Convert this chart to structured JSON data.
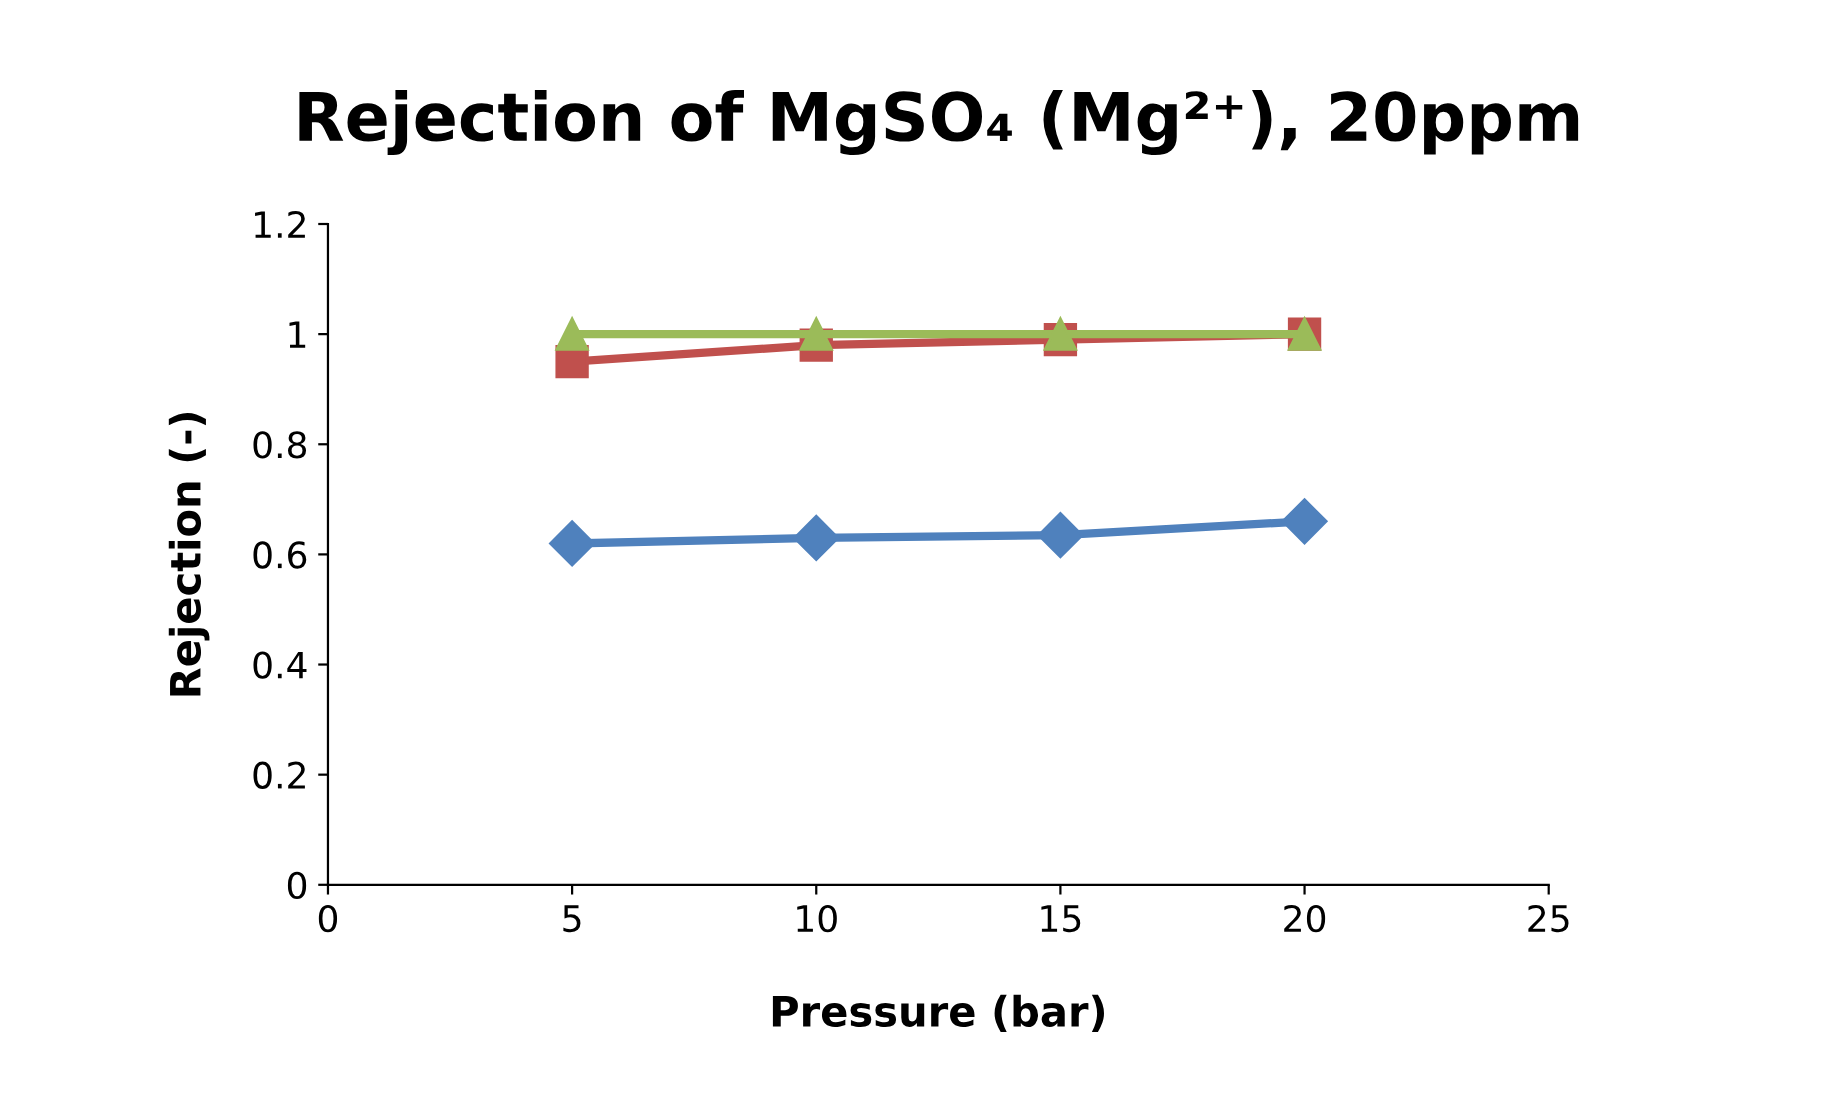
{
  "chart_data": {
    "type": "line",
    "title": "Rejection of MgSO₄ (Mg²⁺), 20ppm",
    "xlabel": "Pressure (bar)",
    "ylabel": "Rejection (-)",
    "x": [
      5,
      10,
      15,
      20
    ],
    "series": [
      {
        "color": "#4f81bd",
        "marker": "diamond",
        "values": [
          0.62,
          0.63,
          0.635,
          0.66
        ]
      },
      {
        "color": "#c0504d",
        "marker": "square",
        "values": [
          0.95,
          0.98,
          0.99,
          1.0
        ]
      },
      {
        "color": "#9bbb59",
        "marker": "triangle",
        "values": [
          1.0,
          1.0,
          1.0,
          1.0
        ]
      }
    ],
    "xlim": [
      0,
      25
    ],
    "xticks": [
      0,
      5,
      10,
      15,
      20,
      25
    ],
    "ylim": [
      0,
      1.2
    ],
    "yticks": [
      0,
      0.2,
      0.4,
      0.6,
      0.8,
      1,
      1.2
    ],
    "grid": false,
    "line_style": "solid"
  }
}
